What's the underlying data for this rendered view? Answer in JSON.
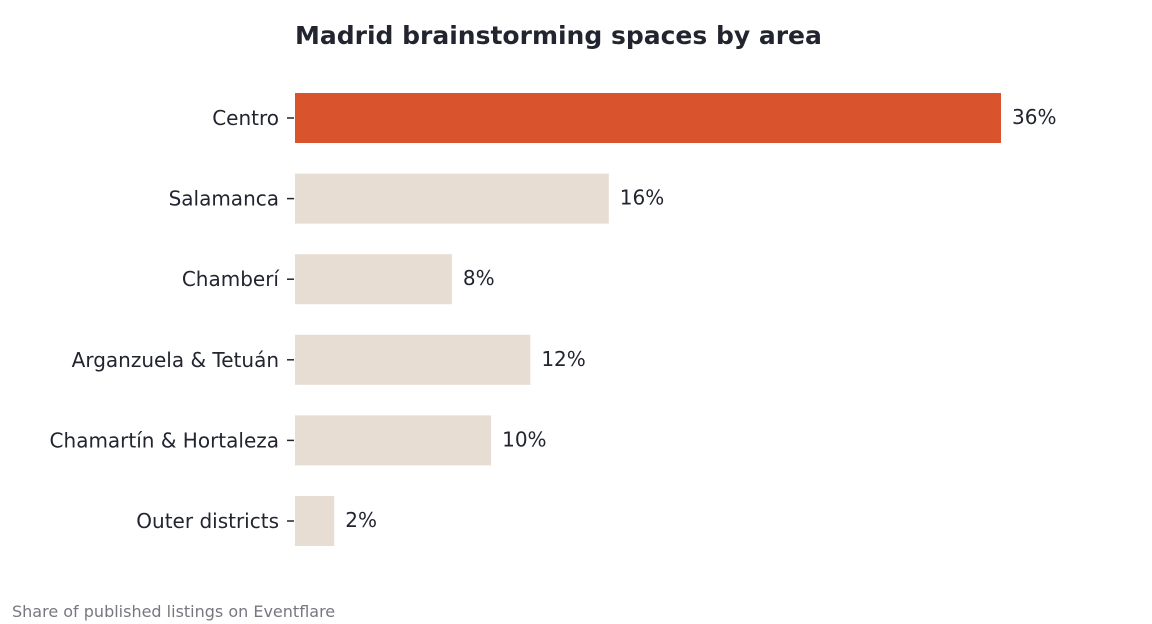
{
  "chart_data": {
    "type": "bar",
    "orientation": "horizontal",
    "title": "Madrid brainstorming spaces by area",
    "categories": [
      "Centro",
      "Salamanca",
      "Chamberí",
      "Arganzuela & Tetuán",
      "Chamartín & Hortaleza",
      "Outer districts"
    ],
    "values": [
      36,
      16,
      8,
      12,
      10,
      2
    ],
    "value_labels": [
      "36%",
      "16%",
      "8%",
      "12%",
      "10%",
      "2%"
    ],
    "xlim": [
      0,
      36
    ],
    "highlight_category": "Centro",
    "grid": false,
    "legend": "none",
    "xlabel": "",
    "ylabel": ""
  },
  "colors": {
    "highlight": "#d9532c",
    "default": "#e7ddd3",
    "text": "#22252f",
    "footnote": "#77777f"
  },
  "footnote": "Share of published listings on Eventflare"
}
